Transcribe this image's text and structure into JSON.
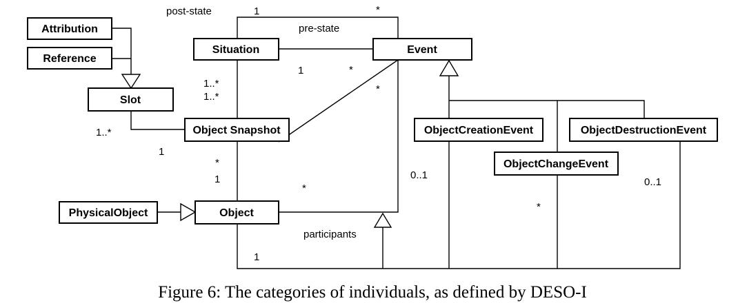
{
  "classes": {
    "attribution": "Attribution",
    "reference": "Reference",
    "slot": "Slot",
    "situation": "Situation",
    "event": "Event",
    "object_snapshot": "Object Snapshot",
    "object": "Object",
    "physical_object": "PhysicalObject",
    "object_creation_event": "ObjectCreationEvent",
    "object_change_event": "ObjectChangeEvent",
    "object_destruction_event": "ObjectDestructionEvent"
  },
  "labels": {
    "post_state": "post-state",
    "pre_state": "pre-state",
    "participants": "participants",
    "mult_post_state_1": "1",
    "mult_post_state_star": "*",
    "mult_pre_state_1": "1",
    "mult_pre_state_star": "*",
    "mult_event_star": "*",
    "mult_situation_1": "1..*",
    "mult_situation_2": "1..*",
    "mult_slot": "1..*",
    "mult_snapshot_1": "1",
    "mult_snapshot_star": "*",
    "mult_object_1": "1",
    "mult_participants_star": "*",
    "mult_creation": "0..1",
    "mult_destruction": "0..1",
    "mult_change": "*",
    "mult_bottom_1": "1"
  },
  "caption": "Figure 6: The categories of individuals, as defined by DESO-I"
}
